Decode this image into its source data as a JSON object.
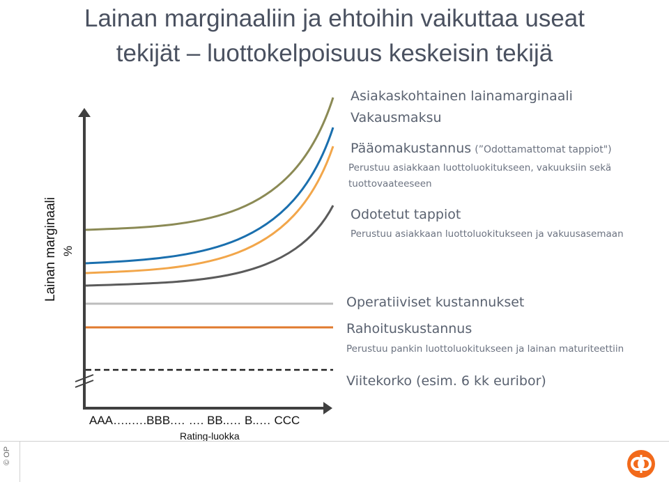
{
  "title": {
    "line1": "Lainan marginaaliin ja ehtoihin vaikuttaa useat",
    "line2": "tekijät – luottokelpoisuus keskeisin tekijä"
  },
  "axes": {
    "ylabel": "Lainan marginaali",
    "yunit": "%",
    "xlabels": "AAA…..….BBB.… …. BB..… B..… CCC",
    "xtitle": "Rating-luokka"
  },
  "labels": {
    "asiakas": "Asiakaskohtainen lainamarginaali",
    "vakaus": "Vakausmaksu",
    "paaoma": "Pääomakustannus",
    "paaoma_paren": "(”Odottamattomat tappiot\")",
    "paaoma_sub1": "Perustuu asiakkaan luottoluokitukseen, vakuuksiin sekä",
    "paaoma_sub2": "tuottovaateeseen",
    "odotetut": "Odotetut tappiot",
    "odotetut_sub": "Perustuu asiakkaan luottoluokitukseen ja vakuusasemaan",
    "operatiiviset": "Operatiiviset kustannukset",
    "rahoitus": "Rahoituskustannus",
    "rahoitus_sub": "Perustuu pankin luottoluokitukseen ja lainan maturiteettiin",
    "viitekorko": "Viitekorko (esim. 6 kk euribor)"
  },
  "footer": {
    "copyright": "© OP",
    "logo": "op-logo-icon"
  },
  "colors": {
    "olive": "#8b8a55",
    "blue": "#1a6fae",
    "orange_light": "#f2a64a",
    "gray_dark": "#5b5b5b",
    "gray_light": "#bdbdbd",
    "orange": "#e07a2e",
    "axis": "#404040",
    "logo": "#f26a1b"
  }
}
